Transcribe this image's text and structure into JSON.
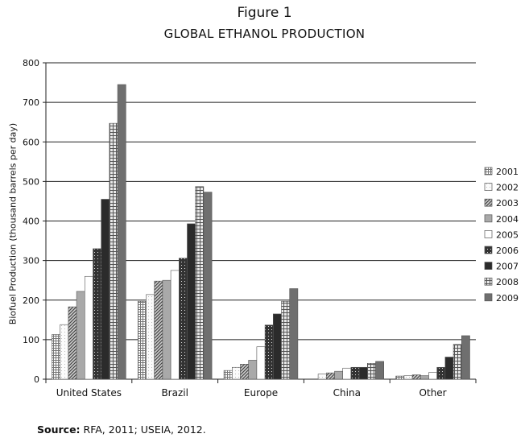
{
  "figure": {
    "label": "Figure 1",
    "title": "GLOBAL ETHANOL PRODUCTION"
  },
  "source": {
    "label": "Source:",
    "text": "RFA, 2011; USEIA, 2012."
  },
  "chart_data": {
    "type": "bar",
    "title": "GLOBAL ETHANOL PRODUCTION",
    "xlabel": "",
    "ylabel": "Biofuel Production (thousand barrels per day)",
    "ylim": [
      0,
      800
    ],
    "yticks": [
      0,
      100,
      200,
      300,
      400,
      500,
      600,
      700,
      800
    ],
    "grid": true,
    "legend": "right",
    "categories": [
      "United States",
      "Brazil",
      "Europe",
      "China",
      "Other"
    ],
    "series": [
      {
        "name": "2001",
        "values": [
          113,
          197,
          22,
          0,
          8
        ]
      },
      {
        "name": "2002",
        "values": [
          138,
          214,
          30,
          13,
          9
        ]
      },
      {
        "name": "2003",
        "values": [
          183,
          248,
          38,
          16,
          11
        ]
      },
      {
        "name": "2004",
        "values": [
          222,
          250,
          48,
          20,
          9
        ]
      },
      {
        "name": "2005",
        "values": [
          260,
          275,
          82,
          28,
          17
        ]
      },
      {
        "name": "2006",
        "values": [
          330,
          306,
          137,
          30,
          30
        ]
      },
      {
        "name": "2007",
        "values": [
          455,
          393,
          165,
          30,
          56
        ]
      },
      {
        "name": "2008",
        "values": [
          647,
          487,
          197,
          40,
          88
        ]
      },
      {
        "name": "2009",
        "values": [
          745,
          473,
          229,
          45,
          110
        ]
      }
    ]
  }
}
